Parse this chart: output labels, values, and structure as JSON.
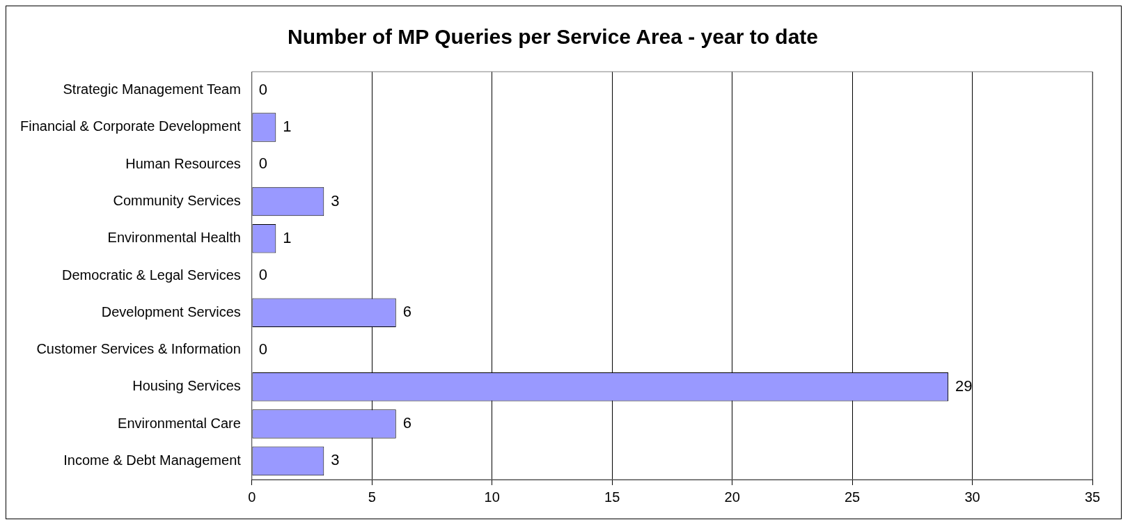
{
  "chart_data": {
    "type": "bar",
    "orientation": "horizontal",
    "title": "Number of MP Queries per Service Area - year to date",
    "categories": [
      "Strategic Management Team",
      "Financial & Corporate Development",
      "Human Resources",
      "Community Services",
      "Environmental Health",
      "Democratic & Legal Services",
      "Development Services",
      "Customer Services & Information",
      "Housing Services",
      "Environmental Care",
      "Income & Debt Management"
    ],
    "values": [
      0,
      1,
      0,
      3,
      1,
      0,
      6,
      0,
      29,
      6,
      3
    ],
    "color": "#9999ff",
    "xlim": [
      0,
      35
    ],
    "xticks": [
      0,
      5,
      10,
      15,
      20,
      25,
      30,
      35
    ],
    "grid": "x",
    "legend": false,
    "data_labels": true
  }
}
